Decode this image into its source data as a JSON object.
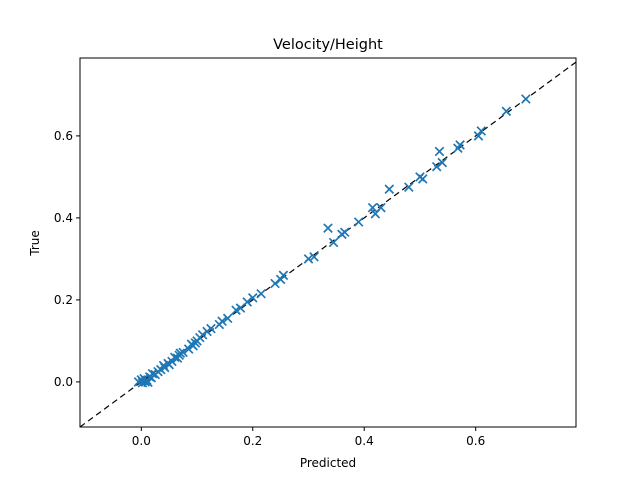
{
  "chart_data": {
    "type": "scatter",
    "title": "Velocity/Height",
    "xlabel": "Predicted",
    "ylabel": "True",
    "xlim": [
      -0.11,
      0.78
    ],
    "ylim": [
      -0.11,
      0.79
    ],
    "xticks": [
      0.0,
      0.2,
      0.4,
      0.6
    ],
    "xtick_labels": [
      "0.0",
      "0.2",
      "0.4",
      "0.6"
    ],
    "yticks": [
      0.0,
      0.2,
      0.4,
      0.6
    ],
    "ytick_labels": [
      "0.0",
      "0.2",
      "0.4",
      "0.6"
    ],
    "marker": "x",
    "marker_color": "#1f77b4",
    "reference_line": {
      "style": "dashed",
      "color": "#000000",
      "slope": 1,
      "intercept": 0
    },
    "grid": false,
    "legend": "none",
    "series": [
      {
        "points": [
          [
            -0.005,
            0.0
          ],
          [
            0.0,
            0.005
          ],
          [
            0.002,
            -0.002
          ],
          [
            0.005,
            0.008
          ],
          [
            0.007,
            0.0
          ],
          [
            0.01,
            0.004
          ],
          [
            0.012,
            -0.001
          ],
          [
            0.015,
            0.012
          ],
          [
            0.018,
            0.01
          ],
          [
            0.02,
            0.02
          ],
          [
            0.025,
            0.018
          ],
          [
            0.03,
            0.025
          ],
          [
            0.035,
            0.03
          ],
          [
            0.04,
            0.04
          ],
          [
            0.042,
            0.035
          ],
          [
            0.048,
            0.045
          ],
          [
            0.05,
            0.042
          ],
          [
            0.055,
            0.05
          ],
          [
            0.06,
            0.06
          ],
          [
            0.065,
            0.058
          ],
          [
            0.068,
            0.065
          ],
          [
            0.07,
            0.07
          ],
          [
            0.075,
            0.072
          ],
          [
            0.085,
            0.08
          ],
          [
            0.09,
            0.092
          ],
          [
            0.093,
            0.088
          ],
          [
            0.097,
            0.095
          ],
          [
            0.1,
            0.1
          ],
          [
            0.105,
            0.108
          ],
          [
            0.11,
            0.115
          ],
          [
            0.118,
            0.123
          ],
          [
            0.125,
            0.13
          ],
          [
            0.14,
            0.14
          ],
          [
            0.145,
            0.148
          ],
          [
            0.155,
            0.155
          ],
          [
            0.17,
            0.175
          ],
          [
            0.178,
            0.18
          ],
          [
            0.19,
            0.195
          ],
          [
            0.2,
            0.205
          ],
          [
            0.215,
            0.215
          ],
          [
            0.24,
            0.24
          ],
          [
            0.25,
            0.25
          ],
          [
            0.255,
            0.26
          ],
          [
            0.3,
            0.3
          ],
          [
            0.31,
            0.305
          ],
          [
            0.335,
            0.375
          ],
          [
            0.345,
            0.34
          ],
          [
            0.36,
            0.36
          ],
          [
            0.365,
            0.365
          ],
          [
            0.39,
            0.39
          ],
          [
            0.415,
            0.425
          ],
          [
            0.42,
            0.41
          ],
          [
            0.43,
            0.425
          ],
          [
            0.445,
            0.47
          ],
          [
            0.48,
            0.475
          ],
          [
            0.5,
            0.5
          ],
          [
            0.505,
            0.495
          ],
          [
            0.53,
            0.525
          ],
          [
            0.535,
            0.562
          ],
          [
            0.54,
            0.535
          ],
          [
            0.568,
            0.57
          ],
          [
            0.572,
            0.578
          ],
          [
            0.605,
            0.6
          ],
          [
            0.61,
            0.612
          ],
          [
            0.655,
            0.66
          ],
          [
            0.69,
            0.69
          ]
        ]
      }
    ]
  }
}
